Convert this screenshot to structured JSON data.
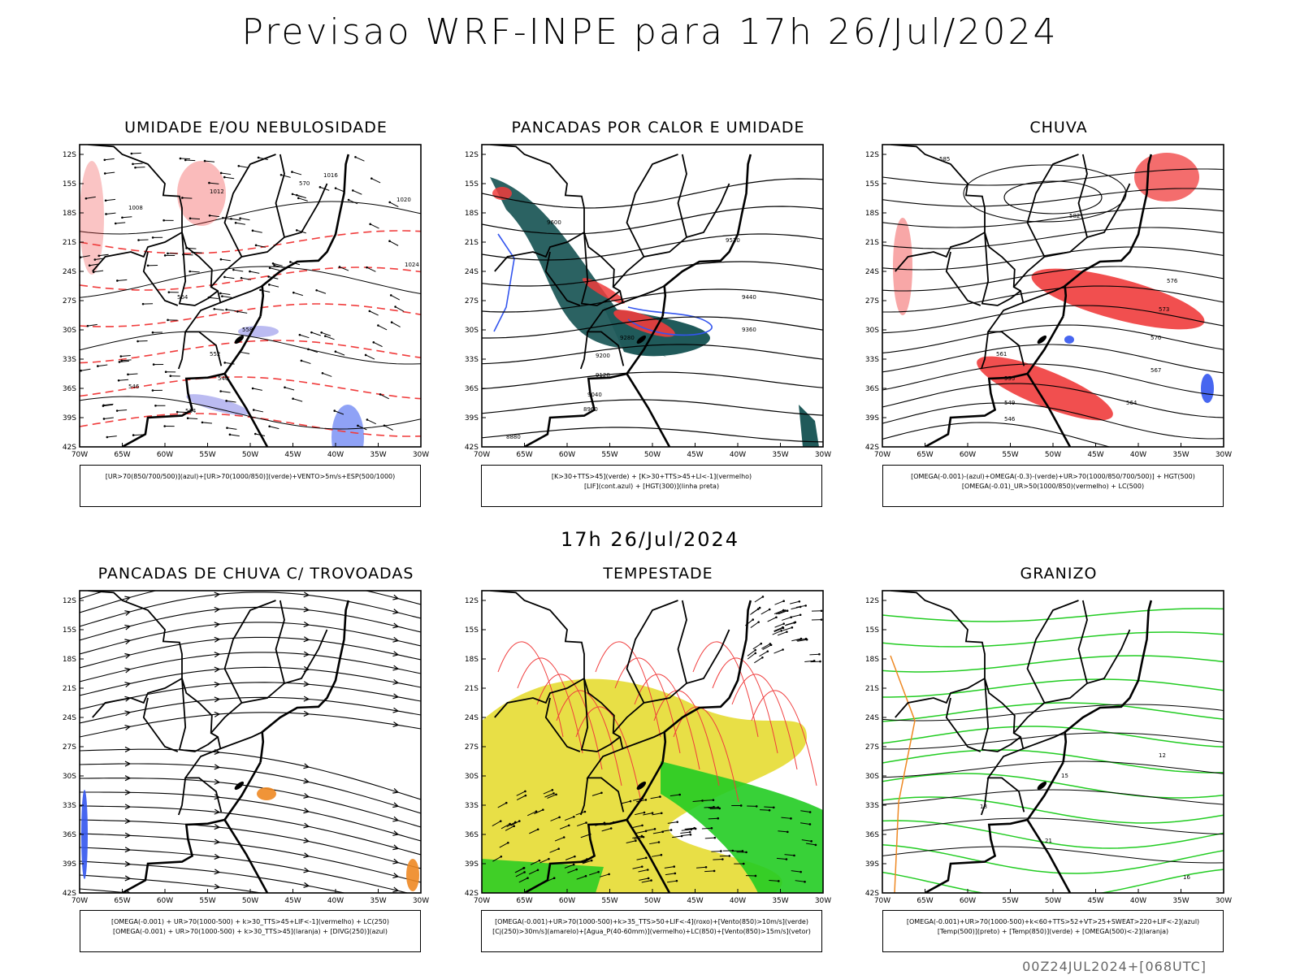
{
  "title": "Previsao WRF-INPE  para 17h 26/Jul/2024",
  "mid_title": "17h 26/Jul/2024",
  "footer": "00Z24JUL2024+[068UTC]",
  "axes": {
    "lat_labels": [
      "12S",
      "15S",
      "18S",
      "21S",
      "24S",
      "27S",
      "30S",
      "33S",
      "36S",
      "39S",
      "42S"
    ],
    "lon_labels": [
      "70W",
      "65W",
      "60W",
      "55W",
      "50W",
      "45W",
      "40W",
      "35W",
      "30W"
    ]
  },
  "colors": {
    "red": "#f03c3c",
    "green": "#22cc22",
    "blue": "#3355ee",
    "yellow": "#e6dc32",
    "orange": "#ee8822",
    "teal": "#205a5a",
    "lilac": "#aaaaee"
  },
  "panels": [
    {
      "id": "umidade",
      "title": "UMIDADE E/OU NEBULOSIDADE",
      "legend": [
        "[UR>70(850/700/500)](azul)+[UR>70(1000/850)](verde)+VENTO>5m/s+ESP(500/1000)"
      ],
      "labels": [
        "1012",
        "1016",
        "1020",
        "1024",
        "1008",
        "570",
        "564",
        "558",
        "552",
        "546",
        "540",
        "534"
      ]
    },
    {
      "id": "pancadas_calor",
      "title": "PANCADAS POR CALOR E UMIDADE",
      "legend": [
        "[K>30+TTS>45](verde) + [K>30+TTS>45+LI<-1](vermelho)",
        "[LIF](cont.azul) + [HGT(300)](linha preta)"
      ],
      "labels": [
        "9600",
        "9520",
        "9440",
        "9360",
        "9280",
        "9200",
        "9120",
        "9040",
        "8960",
        "8880"
      ]
    },
    {
      "id": "chuva",
      "title": "CHUVA",
      "legend": [
        "[OMEGA(-0.001)-(azul)+OMEGA(-0.3)-(verde)+UR>70(1000/850/700/500)] + HGT(500)",
        "[OMEGA(-0.01)_UR>50(1000/850)(vermelho) + LC(500)"
      ],
      "labels": [
        "585",
        "582",
        "576",
        "573",
        "570",
        "567",
        "564",
        "561",
        "555",
        "549",
        "546"
      ]
    },
    {
      "id": "trovoadas",
      "title": "PANCADAS DE CHUVA C/ TROVOADAS",
      "legend": [
        "[OMEGA(-0.001) + UR>70(1000-500) + k>30_TTS>45+LIF<-1](vermelho) + LC(250)",
        "[OMEGA(-0.001) + UR>70(1000-500) + k>30_TTS>45](laranja) + [DIVG(250)](azul)"
      ],
      "labels": []
    },
    {
      "id": "tempestade",
      "title": "TEMPESTADE",
      "legend": [
        "[OMEGA(-0.001)+UR>70(1000-500)+k>35_TTS>50+LIF<-4](roxo)+[Vento(850)>10m/s](verde)",
        "[Cj(250)>30m/s](amarelo)+[Agua_P(40-60mm)](vermelho)+LC(850)+[Vento(850)>15m/s](vetor)"
      ],
      "labels": []
    },
    {
      "id": "granizo",
      "title": "GRANIZO",
      "legend": [
        "[OMEGA(-0.001)+UR>70(1000-500)+k<60+TTS>52+VT>25+SWEAT>220+LIF<-2](azul)",
        "[Temp(500)](preto) + [Temp(850)](verde) + [OMEGA(500)<-2](laranja)"
      ],
      "labels": [
        "12",
        "15",
        "18",
        "21",
        "16"
      ]
    }
  ]
}
